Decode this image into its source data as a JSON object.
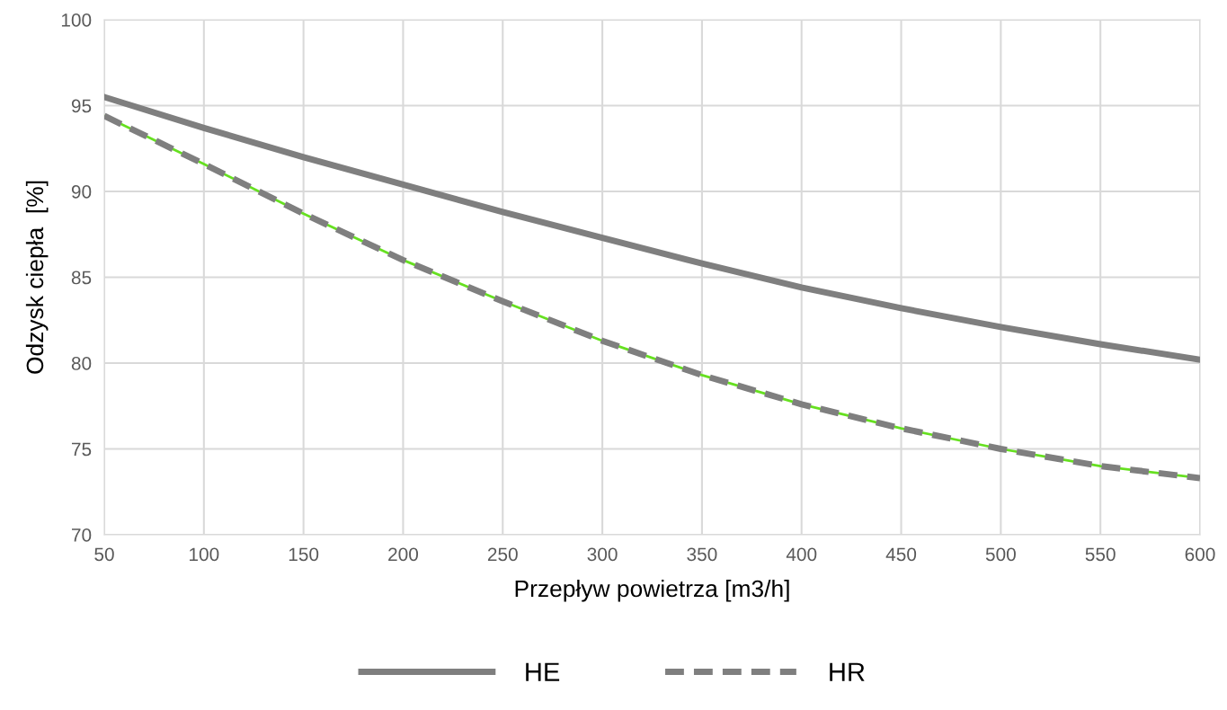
{
  "chart_data": {
    "type": "line",
    "xlabel": "Przepływ powietrza [m3/h]",
    "ylabel": "Odzysk ciepła  [%]",
    "x": [
      50,
      100,
      150,
      200,
      250,
      300,
      350,
      400,
      450,
      500,
      550,
      600
    ],
    "xlim": [
      50,
      600
    ],
    "xticks": [
      50,
      100,
      150,
      200,
      250,
      300,
      350,
      400,
      450,
      500,
      550,
      600
    ],
    "ylim": [
      70,
      100
    ],
    "yticks": [
      70,
      75,
      80,
      85,
      90,
      95,
      100
    ],
    "grid": true,
    "legend": "bottom",
    "marker": "none",
    "series": [
      {
        "color": "#66e020",
        "line_style": "solid",
        "values": [
          94.4,
          91.6,
          88.7,
          86.0,
          83.6,
          81.3,
          79.3,
          77.6,
          76.2,
          75.0,
          74.0,
          73.3
        ]
      },
      {
        "name": "HE",
        "color": "#7f7f7f",
        "line_style": "solid",
        "values": [
          95.5,
          93.7,
          92.0,
          90.4,
          88.8,
          87.3,
          85.8,
          84.4,
          83.2,
          82.1,
          81.1,
          80.2
        ]
      },
      {
        "name": "HR",
        "color": "#7f7f7f",
        "line_style": "dashed",
        "values": [
          94.4,
          91.6,
          88.7,
          86.0,
          83.6,
          81.3,
          79.3,
          77.6,
          76.2,
          75.0,
          74.0,
          73.3
        ]
      }
    ]
  }
}
